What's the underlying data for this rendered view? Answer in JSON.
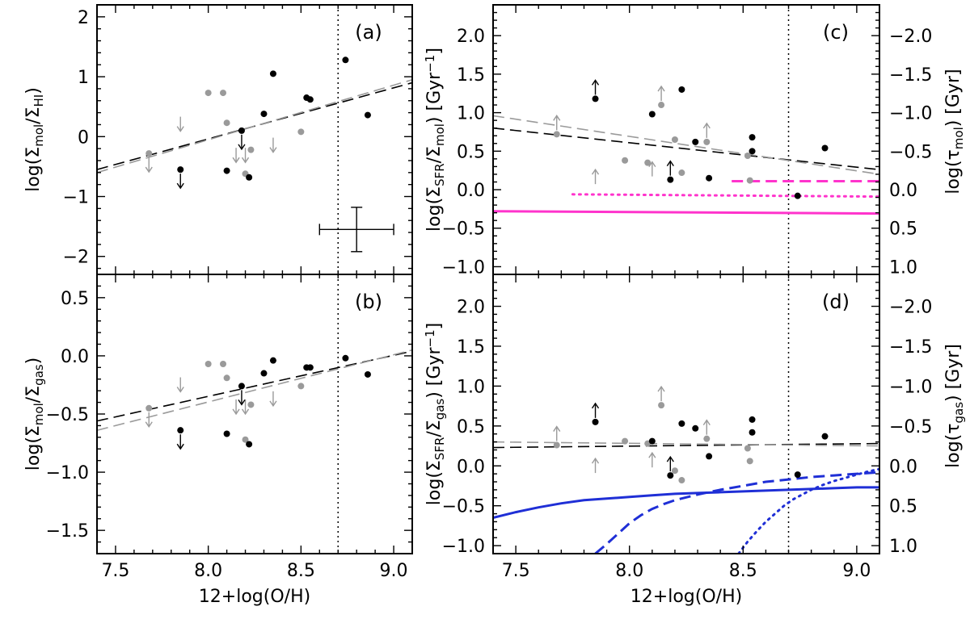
{
  "chart_data": {
    "type": "scatter",
    "xlabel": "12+log(O/H)",
    "x_tick_labels": [
      "7.5",
      "8.0",
      "8.5",
      "9.0"
    ],
    "x_ticks": [
      7.5,
      8.0,
      8.5,
      9.0
    ],
    "xlim": [
      7.4,
      9.1
    ],
    "solar_metallicity": 8.7,
    "panels": [
      {
        "id": "a",
        "tag": "(a)",
        "ylabel": {
          "pre": "log(Σ",
          "sub1": "mol",
          "mid": "/Σ",
          "sub2": "HI",
          "post": ")"
        },
        "ylim": [
          -2.3,
          2.2
        ],
        "y_ticks": [
          -2,
          -1,
          0,
          1,
          2
        ],
        "y_tick_labels": [
          "−2",
          "−1",
          "0",
          "1",
          "2"
        ],
        "black_points": [
          [
            8.1,
            -0.57
          ],
          [
            8.22,
            -0.68
          ],
          [
            8.3,
            0.38
          ],
          [
            8.35,
            1.05
          ],
          [
            8.53,
            0.65
          ],
          [
            8.55,
            0.62
          ],
          [
            8.74,
            1.28
          ],
          [
            8.86,
            0.36
          ]
        ],
        "black_upper_limits": [
          [
            7.85,
            -0.55
          ],
          [
            8.18,
            0.1
          ]
        ],
        "gray_points": [
          [
            7.68,
            -0.28
          ],
          [
            8.0,
            0.73
          ],
          [
            8.08,
            0.73
          ],
          [
            8.1,
            0.23
          ],
          [
            8.2,
            -0.62
          ],
          [
            8.23,
            -0.22
          ],
          [
            8.5,
            0.08
          ]
        ],
        "gray_upper_limits": [
          [
            7.68,
            -0.28
          ],
          [
            7.85,
            0.4
          ],
          [
            8.15,
            -0.12
          ],
          [
            8.2,
            -0.12
          ],
          [
            8.35,
            0.05
          ]
        ],
        "fits": [
          {
            "name": "black fit",
            "color": "#000000",
            "style": "dash",
            "x": [
              7.4,
              9.1
            ],
            "y": [
              -0.55,
              0.9
            ]
          },
          {
            "name": "gray fit",
            "color": "#9a9a9a",
            "style": "dash",
            "x": [
              7.4,
              9.1
            ],
            "y": [
              -0.6,
              0.95
            ]
          }
        ],
        "error_bar": {
          "x": 8.8,
          "y": -1.55,
          "x_err": 0.2,
          "y_err": 0.37
        }
      },
      {
        "id": "b",
        "tag": "(b)",
        "ylabel": {
          "pre": "log(Σ",
          "sub1": "mol",
          "mid": "/Σ",
          "sub2": "gas",
          "post": ")"
        },
        "ylim": [
          -1.7,
          0.7
        ],
        "y_ticks": [
          -1.5,
          -1.0,
          -0.5,
          0.0,
          0.5
        ],
        "y_tick_labels": [
          "−1.5",
          "−1.0",
          "−0.5",
          "0.0",
          "0.5"
        ],
        "black_points": [
          [
            8.1,
            -0.67
          ],
          [
            8.22,
            -0.76
          ],
          [
            8.3,
            -0.15
          ],
          [
            8.35,
            -0.04
          ],
          [
            8.53,
            -0.1
          ],
          [
            8.55,
            -0.1
          ],
          [
            8.74,
            -0.02
          ],
          [
            8.86,
            -0.16
          ]
        ],
        "black_upper_limits": [
          [
            7.85,
            -0.64
          ],
          [
            8.18,
            -0.26
          ]
        ],
        "gray_points": [
          [
            7.68,
            -0.45
          ],
          [
            8.0,
            -0.07
          ],
          [
            8.08,
            -0.07
          ],
          [
            8.1,
            -0.19
          ],
          [
            8.2,
            -0.72
          ],
          [
            8.23,
            -0.42
          ],
          [
            8.5,
            -0.26
          ]
        ],
        "gray_upper_limits": [
          [
            7.68,
            -0.45
          ],
          [
            7.85,
            -0.15
          ],
          [
            8.15,
            -0.34
          ],
          [
            8.2,
            -0.34
          ],
          [
            8.35,
            -0.27
          ]
        ],
        "fits": [
          {
            "name": "black fit",
            "color": "#000000",
            "style": "dash",
            "x": [
              7.4,
              9.1
            ],
            "y": [
              -0.56,
              0.04
            ]
          },
          {
            "name": "gray fit",
            "color": "#9a9a9a",
            "style": "dash",
            "x": [
              7.4,
              9.1
            ],
            "y": [
              -0.64,
              0.05
            ]
          }
        ]
      },
      {
        "id": "c",
        "tag": "(c)",
        "ylabel": {
          "pre": "log(Σ",
          "sub1": "SFR",
          "mid": "/Σ",
          "sub2": "mol",
          "post": ") [Gyr",
          "sup": "−1",
          "post2": "]"
        },
        "ylabel_right": {
          "pre": "log(τ",
          "sub1": "mol",
          "post": ") [Gyr]"
        },
        "ylim": [
          -1.1,
          2.4
        ],
        "y_ticks": [
          -1.0,
          -0.5,
          0.0,
          0.5,
          1.0,
          1.5,
          2.0
        ],
        "y_tick_labels": [
          "−1.0",
          "−0.5",
          "0.0",
          "0.5",
          "1.0",
          "1.5",
          "2.0"
        ],
        "y_right_tick_labels": [
          "1.0",
          "0.5",
          "0.0",
          "−0.5",
          "−1.0",
          "−1.5",
          "−2.0"
        ],
        "black_points": [
          [
            8.1,
            0.98
          ],
          [
            8.23,
            1.3
          ],
          [
            8.29,
            0.62
          ],
          [
            8.35,
            0.15
          ],
          [
            8.54,
            0.68
          ],
          [
            8.54,
            0.5
          ],
          [
            8.74,
            -0.08
          ],
          [
            8.86,
            0.54
          ]
        ],
        "black_lower_limits": [
          [
            7.85,
            1.18
          ],
          [
            8.18,
            0.13
          ]
        ],
        "gray_points": [
          [
            7.68,
            0.72
          ],
          [
            7.98,
            0.38
          ],
          [
            8.08,
            0.35
          ],
          [
            8.14,
            1.1
          ],
          [
            8.2,
            0.65
          ],
          [
            8.23,
            0.22
          ],
          [
            8.34,
            0.62
          ],
          [
            8.52,
            0.44
          ],
          [
            8.53,
            0.12
          ]
        ],
        "gray_lower_limits": [
          [
            7.68,
            0.72
          ],
          [
            7.85,
            0.02
          ],
          [
            8.1,
            0.12
          ],
          [
            8.14,
            1.1
          ],
          [
            8.34,
            0.62
          ]
        ],
        "fits": [
          {
            "name": "black fit",
            "color": "#000000",
            "style": "dash",
            "x": [
              7.4,
              9.1
            ],
            "y": [
              0.8,
              0.26
            ]
          },
          {
            "name": "gray fit",
            "color": "#9a9a9a",
            "style": "dash",
            "x": [
              7.4,
              9.1
            ],
            "y": [
              0.96,
              0.2
            ]
          }
        ],
        "model_lines": [
          {
            "name": "solid model",
            "color": "#ff33cc",
            "style": "solid",
            "x": [
              7.4,
              9.1
            ],
            "y": [
              -0.28,
              -0.31
            ]
          },
          {
            "name": "dotted model",
            "color": "#ff33cc",
            "style": "dot",
            "x": [
              7.75,
              9.1
            ],
            "y": [
              -0.06,
              -0.09
            ]
          },
          {
            "name": "dashed model",
            "color": "#ff33cc",
            "style": "dash",
            "x": [
              8.45,
              9.1
            ],
            "y": [
              0.11,
              0.11
            ]
          }
        ]
      },
      {
        "id": "d",
        "tag": "(d)",
        "ylabel": {
          "pre": "log(Σ",
          "sub1": "SFR",
          "mid": "/Σ",
          "sub2": "gas",
          "post": ") [Gyr",
          "sup": "−1",
          "post2": "]"
        },
        "ylabel_right": {
          "pre": "log(τ",
          "sub1": "gas",
          "post": ") [Gyr]"
        },
        "ylim": [
          -1.1,
          2.4
        ],
        "y_ticks": [
          -1.0,
          -0.5,
          0.0,
          0.5,
          1.0,
          1.5,
          2.0
        ],
        "y_tick_labels": [
          "−1.0",
          "−0.5",
          "0.0",
          "0.5",
          "1.0",
          "1.5",
          "2.0"
        ],
        "y_right_tick_labels": [
          "1.0",
          "0.5",
          "0.0",
          "−0.5",
          "−1.0",
          "−1.5",
          "−2.0"
        ],
        "black_points": [
          [
            8.1,
            0.31
          ],
          [
            8.23,
            0.53
          ],
          [
            8.29,
            0.47
          ],
          [
            8.35,
            0.12
          ],
          [
            8.54,
            0.58
          ],
          [
            8.54,
            0.42
          ],
          [
            8.74,
            -0.11
          ],
          [
            8.86,
            0.37
          ]
        ],
        "black_lower_limits": [
          [
            7.85,
            0.55
          ],
          [
            8.18,
            -0.12
          ]
        ],
        "gray_points": [
          [
            7.68,
            0.26
          ],
          [
            7.98,
            0.31
          ],
          [
            8.08,
            0.28
          ],
          [
            8.14,
            0.76
          ],
          [
            8.2,
            -0.06
          ],
          [
            8.23,
            -0.18
          ],
          [
            8.34,
            0.34
          ],
          [
            8.52,
            0.22
          ],
          [
            8.53,
            0.06
          ]
        ],
        "gray_lower_limits": [
          [
            7.68,
            0.26
          ],
          [
            7.85,
            -0.14
          ],
          [
            8.1,
            -0.07
          ],
          [
            8.14,
            0.76
          ],
          [
            8.34,
            0.34
          ]
        ],
        "fits": [
          {
            "name": "black fit",
            "color": "#000000",
            "style": "dash",
            "x": [
              7.4,
              9.1
            ],
            "y": [
              0.23,
              0.28
            ]
          },
          {
            "name": "gray fit",
            "color": "#9a9a9a",
            "style": "dash",
            "x": [
              7.4,
              9.1
            ],
            "y": [
              0.3,
              0.25
            ]
          }
        ],
        "model_lines": [
          {
            "name": "solid model",
            "color": "#1f2fd6",
            "style": "solid",
            "x": [
              7.4,
              7.5,
              7.6,
              7.7,
              7.8,
              7.9,
              8.0,
              8.1,
              8.2,
              8.3,
              8.4,
              8.5,
              8.6,
              8.7,
              8.8,
              8.9,
              9.0,
              9.1
            ],
            "y": [
              -0.65,
              -0.58,
              -0.52,
              -0.47,
              -0.43,
              -0.41,
              -0.39,
              -0.37,
              -0.35,
              -0.34,
              -0.33,
              -0.32,
              -0.31,
              -0.3,
              -0.29,
              -0.28,
              -0.27,
              -0.27
            ]
          },
          {
            "name": "dashed model",
            "color": "#1f2fd6",
            "style": "dash",
            "x": [
              7.85,
              7.9,
              7.95,
              8.0,
              8.05,
              8.1,
              8.15,
              8.2,
              8.3,
              8.4,
              8.5,
              8.6,
              8.7,
              8.8,
              8.9,
              9.0,
              9.1
            ],
            "y": [
              -1.1,
              -0.98,
              -0.85,
              -0.72,
              -0.62,
              -0.54,
              -0.48,
              -0.43,
              -0.36,
              -0.3,
              -0.25,
              -0.2,
              -0.17,
              -0.14,
              -0.12,
              -0.1,
              -0.08
            ]
          },
          {
            "name": "dotted model",
            "color": "#1f2fd6",
            "style": "dot",
            "x": [
              8.48,
              8.52,
              8.56,
              8.6,
              8.64,
              8.68,
              8.72,
              8.76,
              8.8,
              8.85,
              8.9,
              8.95,
              9.0,
              9.05,
              9.1
            ],
            "y": [
              -1.1,
              -0.95,
              -0.82,
              -0.7,
              -0.6,
              -0.5,
              -0.42,
              -0.36,
              -0.3,
              -0.24,
              -0.19,
              -0.15,
              -0.11,
              -0.07,
              -0.04
            ]
          }
        ]
      }
    ]
  },
  "colors": {
    "black": "#000000",
    "gray": "#9a9a9a",
    "magenta": "#ff33cc",
    "blue": "#1f2fd6"
  }
}
